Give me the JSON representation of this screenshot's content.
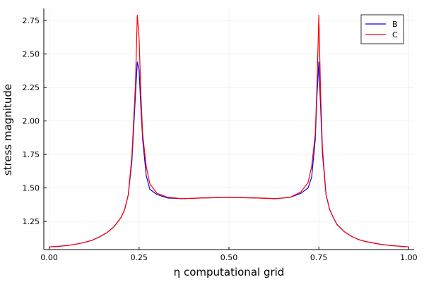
{
  "chart_data": {
    "type": "line",
    "title": "",
    "xlabel": "η computational grid",
    "ylabel": "stress magnitude",
    "xlim": [
      -0.015,
      1.015
    ],
    "ylim": [
      1.04,
      2.84
    ],
    "grid": true,
    "legend_position": "top-right",
    "x_ticks": [
      0.0,
      0.25,
      0.5,
      0.75,
      1.0
    ],
    "x_tick_labels": [
      "0.00",
      "0.25",
      "0.50",
      "0.75",
      "1.00"
    ],
    "y_ticks": [
      1.25,
      1.5,
      1.75,
      2.0,
      2.25,
      2.5,
      2.75
    ],
    "y_tick_labels": [
      "1.25",
      "1.50",
      "1.75",
      "2.00",
      "2.25",
      "2.50",
      "2.75"
    ],
    "x": [
      0.0,
      0.02,
      0.05,
      0.08,
      0.1,
      0.12,
      0.14,
      0.16,
      0.18,
      0.2,
      0.21,
      0.22,
      0.23,
      0.24,
      0.245,
      0.25,
      0.255,
      0.26,
      0.27,
      0.28,
      0.3,
      0.33,
      0.37,
      0.42,
      0.5,
      0.58,
      0.63,
      0.67,
      0.7,
      0.72,
      0.73,
      0.74,
      0.745,
      0.75,
      0.755,
      0.76,
      0.77,
      0.78,
      0.79,
      0.8,
      0.82,
      0.84,
      0.86,
      0.88,
      0.9,
      0.92,
      0.95,
      0.98,
      1.0
    ],
    "series": [
      {
        "name": "B",
        "color": "#0000ff",
        "values": [
          1.06,
          1.063,
          1.07,
          1.083,
          1.095,
          1.11,
          1.135,
          1.165,
          1.21,
          1.28,
          1.34,
          1.45,
          1.7,
          2.2,
          2.44,
          2.38,
          2.1,
          1.86,
          1.59,
          1.49,
          1.45,
          1.425,
          1.42,
          1.425,
          1.43,
          1.425,
          1.42,
          1.43,
          1.46,
          1.5,
          1.58,
          1.86,
          2.2,
          2.44,
          2.1,
          1.76,
          1.45,
          1.34,
          1.28,
          1.23,
          1.175,
          1.14,
          1.115,
          1.1,
          1.09,
          1.08,
          1.07,
          1.064,
          1.06
        ]
      },
      {
        "name": "C",
        "color": "#ff0000",
        "values": [
          1.06,
          1.063,
          1.07,
          1.083,
          1.095,
          1.11,
          1.135,
          1.165,
          1.21,
          1.28,
          1.34,
          1.45,
          1.74,
          2.28,
          2.79,
          2.62,
          2.2,
          1.9,
          1.66,
          1.53,
          1.46,
          1.43,
          1.42,
          1.425,
          1.43,
          1.425,
          1.42,
          1.43,
          1.47,
          1.54,
          1.66,
          1.9,
          2.28,
          2.79,
          2.2,
          1.8,
          1.45,
          1.34,
          1.28,
          1.23,
          1.175,
          1.14,
          1.115,
          1.1,
          1.09,
          1.08,
          1.07,
          1.064,
          1.06
        ]
      }
    ]
  }
}
